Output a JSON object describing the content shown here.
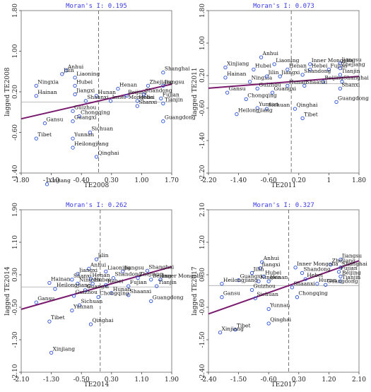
{
  "chart_data": [
    {
      "type": "scatter",
      "title": "Moran's I: 0.195",
      "xlabel": "TE2008",
      "ylabel": "lagged TE2008",
      "xticks": [
        "-1.80",
        "-1.10",
        "-0.40",
        "0.30",
        "1.00",
        "1.70"
      ],
      "yticks": [
        "1.80",
        "1.00",
        "0.20",
        "-0.60",
        "-1.40"
      ],
      "xlim": [
        -1.8,
        1.7
      ],
      "ylim": [
        -1.4,
        1.8
      ],
      "grid": false,
      "regression": {
        "intercept": 0.02,
        "slope": 0.195
      },
      "points": [
        {
          "name": "Anhui",
          "x": -0.75,
          "y": 0.62
        },
        {
          "name": "Jilin",
          "x": -0.85,
          "y": 0.55
        },
        {
          "name": "Liaoning",
          "x": -0.55,
          "y": 0.48
        },
        {
          "name": "Ningxia",
          "x": -1.45,
          "y": 0.32
        },
        {
          "name": "Hubei",
          "x": -0.55,
          "y": 0.32
        },
        {
          "name": "Hainan",
          "x": -1.45,
          "y": 0.12
        },
        {
          "name": "Jiangxi",
          "x": -0.55,
          "y": 0.15
        },
        {
          "name": "Hunan",
          "x": -0.05,
          "y": 0.12
        },
        {
          "name": "Shaanxi",
          "x": -0.3,
          "y": 0.02
        },
        {
          "name": "Inner Mongolia",
          "x": 0.28,
          "y": 0.02
        },
        {
          "name": "Henan",
          "x": 0.45,
          "y": 0.26
        },
        {
          "name": "Beijing",
          "x": 0.65,
          "y": 0.12
        },
        {
          "name": "Zhejiang",
          "x": 1.15,
          "y": 0.32
        },
        {
          "name": "Shanghai",
          "x": 1.5,
          "y": 0.58
        },
        {
          "name": "Jiangsu",
          "x": 1.5,
          "y": 0.32
        },
        {
          "name": "Shandong",
          "x": 1.05,
          "y": 0.15
        },
        {
          "name": "Fujian",
          "x": 1.45,
          "y": 0.07
        },
        {
          "name": "Hebei",
          "x": 0.9,
          "y": 0.02
        },
        {
          "name": "Tianjin",
          "x": 1.5,
          "y": -0.03
        },
        {
          "name": "Shanxi",
          "x": 0.9,
          "y": -0.08
        },
        {
          "name": "Guizhou",
          "x": -0.6,
          "y": -0.18
        },
        {
          "name": "Chongqing",
          "x": -0.45,
          "y": -0.28
        },
        {
          "name": "Gansu",
          "x": -1.25,
          "y": -0.42
        },
        {
          "name": "Guangxi",
          "x": -0.6,
          "y": -0.38
        },
        {
          "name": "Sichuan",
          "x": -0.2,
          "y": -0.6
        },
        {
          "name": "Guangdong",
          "x": 1.5,
          "y": -0.38
        },
        {
          "name": "Tibet",
          "x": -1.45,
          "y": -0.72
        },
        {
          "name": "Yunnan",
          "x": -0.6,
          "y": -0.72
        },
        {
          "name": "Heilongjiang",
          "x": -0.6,
          "y": -0.9
        },
        {
          "name": "Qinghai",
          "x": -0.05,
          "y": -1.08
        },
        {
          "name": "Xinjiang",
          "x": -1.2,
          "y": -1.62
        }
      ]
    },
    {
      "type": "scatter",
      "title": "Moran's I: 0.073",
      "xlabel": "TE2011",
      "ylabel": "lagged TE2011",
      "xticks": [
        "-2.20",
        "-1.40",
        "-0.60",
        "0.20",
        "1",
        "1.80"
      ],
      "yticks": [
        "1.80",
        "1.00",
        "0.20",
        "-0.60",
        "-1.40",
        "-2.20"
      ],
      "xlim": [
        -2.2,
        1.8
      ],
      "ylim": [
        -2.2,
        1.8
      ],
      "grid": false,
      "regression": {
        "intercept": 0.05,
        "slope": 0.073
      },
      "points": [
        {
          "name": "Anhui",
          "x": -0.8,
          "y": 0.65
        },
        {
          "name": "Liaoning",
          "x": -0.45,
          "y": 0.48
        },
        {
          "name": "Inner Mongolia",
          "x": 0.5,
          "y": 0.48
        },
        {
          "name": "Jiangsu",
          "x": 1.3,
          "y": 0.5
        },
        {
          "name": "Xinjiang",
          "x": -1.75,
          "y": 0.4
        },
        {
          "name": "Hubei",
          "x": -1.0,
          "y": 0.35
        },
        {
          "name": "Henan",
          "x": -0.1,
          "y": 0.35
        },
        {
          "name": "Hebei",
          "x": 0.5,
          "y": 0.35
        },
        {
          "name": "Fujian",
          "x": 1.0,
          "y": 0.35
        },
        {
          "name": "Zhejiang",
          "x": 1.3,
          "y": 0.38
        },
        {
          "name": "Hainan",
          "x": -1.75,
          "y": 0.15
        },
        {
          "name": "Ningxia",
          "x": -1.1,
          "y": 0.05
        },
        {
          "name": "Jilin",
          "x": -0.65,
          "y": 0.18
        },
        {
          "name": "Jiangxi",
          "x": -0.3,
          "y": 0.18
        },
        {
          "name": "Shandong",
          "x": 0.3,
          "y": 0.22
        },
        {
          "name": "Tianjin",
          "x": 1.3,
          "y": 0.22
        },
        {
          "name": "Beijing",
          "x": 0.85,
          "y": 0.05
        },
        {
          "name": "Shanghai",
          "x": 1.35,
          "y": 0.05
        },
        {
          "name": "Hunan",
          "x": -0.1,
          "y": -0.05
        },
        {
          "name": "Shaanxi",
          "x": 0.35,
          "y": -0.05
        },
        {
          "name": "Guizhou",
          "x": -0.9,
          "y": -0.12
        },
        {
          "name": "Guangxi",
          "x": -0.5,
          "y": -0.22
        },
        {
          "name": "Shanxi",
          "x": 1.3,
          "y": -0.12
        },
        {
          "name": "Gansu",
          "x": -1.7,
          "y": -0.22
        },
        {
          "name": "Chongqing",
          "x": -1.2,
          "y": -0.38
        },
        {
          "name": "Sichuan",
          "x": -0.65,
          "y": -0.62
        },
        {
          "name": "Guangdong",
          "x": 1.2,
          "y": -0.45
        },
        {
          "name": "Yunnan",
          "x": -0.9,
          "y": -0.6
        },
        {
          "name": "Qinghai",
          "x": 0.1,
          "y": -0.62
        },
        {
          "name": "Heilongjiang",
          "x": -1.45,
          "y": -0.75
        },
        {
          "name": "Tibet",
          "x": 0.3,
          "y": -0.85
        }
      ]
    },
    {
      "type": "scatter",
      "title": "Moran's I: 0.262",
      "xlabel": "TE2014",
      "ylabel": "lagged TE2014",
      "xticks": [
        "-2.10",
        "-1.30",
        "-0.50",
        "0.30",
        "1.10",
        "1.90"
      ],
      "yticks": [
        "1.90",
        "1.10",
        "0.30",
        "-0.50",
        "-1.30",
        "-2.10"
      ],
      "xlim": [
        -2.1,
        1.9
      ],
      "ylim": [
        -2.1,
        1.9
      ],
      "grid": false,
      "regression": {
        "intercept": 0.0,
        "slope": 0.262
      },
      "points": [
        {
          "name": "Jilin",
          "x": -0.1,
          "y": 0.68
        },
        {
          "name": "Anhui",
          "x": -0.3,
          "y": 0.45
        },
        {
          "name": "Liaoning",
          "x": 0.15,
          "y": 0.38
        },
        {
          "name": "Jiangsu",
          "x": 0.6,
          "y": 0.38
        },
        {
          "name": "Shanghai",
          "x": 1.25,
          "y": 0.4
        },
        {
          "name": "Jiangxi",
          "x": -0.6,
          "y": 0.32
        },
        {
          "name": "Shandong",
          "x": 0.35,
          "y": 0.22
        },
        {
          "name": "Zhejiang",
          "x": 1.0,
          "y": 0.22
        },
        {
          "name": "Shanxi",
          "x": -0.75,
          "y": 0.18
        },
        {
          "name": "Henan",
          "x": -0.25,
          "y": 0.2
        },
        {
          "name": "Beijing",
          "x": 1.35,
          "y": 0.18
        },
        {
          "name": "Inner Mongolia",
          "x": 1.6,
          "y": 0.18
        },
        {
          "name": "Hainan",
          "x": -1.35,
          "y": 0.1
        },
        {
          "name": "Ningxia",
          "x": -0.6,
          "y": 0.08
        },
        {
          "name": "Hubei",
          "x": -0.2,
          "y": 0.08
        },
        {
          "name": "Hebei",
          "x": 0.15,
          "y": 0.05
        },
        {
          "name": "Fujian",
          "x": 0.75,
          "y": 0.02
        },
        {
          "name": "Tianjin",
          "x": 1.5,
          "y": 0.02
        },
        {
          "name": "Heilongjiang",
          "x": -1.2,
          "y": -0.05
        },
        {
          "name": "Guangxi",
          "x": -0.4,
          "y": -0.08
        },
        {
          "name": "Hunan",
          "x": 0.3,
          "y": -0.15
        },
        {
          "name": "Shaanxi",
          "x": 0.75,
          "y": -0.2
        },
        {
          "name": "Guizhou",
          "x": -0.7,
          "y": -0.22
        },
        {
          "name": "Chongqing",
          "x": -0.05,
          "y": -0.25
        },
        {
          "name": "Gansu",
          "x": -1.7,
          "y": -0.38
        },
        {
          "name": "Sichuan",
          "x": -0.55,
          "y": -0.45
        },
        {
          "name": "Guangdong",
          "x": 1.35,
          "y": -0.35
        },
        {
          "name": "Yunnan",
          "x": -0.75,
          "y": -0.58
        },
        {
          "name": "Tibet",
          "x": -1.35,
          "y": -0.85
        },
        {
          "name": "Qinghai",
          "x": -0.25,
          "y": -0.92
        },
        {
          "name": "Xinjiang",
          "x": -1.3,
          "y": -1.62
        }
      ]
    },
    {
      "type": "scatter",
      "title": "Moran's I: 0.327",
      "xlabel": "TE2017",
      "ylabel": "lagged TE2017",
      "xticks": [
        "-2.40",
        "-1.50",
        "-0.60",
        "0.30",
        "1.20",
        "2.10"
      ],
      "yticks": [
        "2.10",
        "1.20",
        "0.30",
        "-0.60",
        "-1.50",
        "-2.40"
      ],
      "xlim": [
        -2.4,
        2.1
      ],
      "ylim": [
        -2.4,
        2.1
      ],
      "grid": false,
      "regression": {
        "intercept": 0.0,
        "slope": 0.327
      },
      "points": [
        {
          "name": "Jiangsu",
          "x": 1.55,
          "y": 0.72
        },
        {
          "name": "Anhui",
          "x": -0.8,
          "y": 0.65
        },
        {
          "name": "Zhejiang",
          "x": 1.25,
          "y": 0.58
        },
        {
          "name": "Shanghai",
          "x": 1.55,
          "y": 0.5
        },
        {
          "name": "Jiangxi",
          "x": -0.85,
          "y": 0.48
        },
        {
          "name": "Inner Mongolia",
          "x": 0.2,
          "y": 0.5
        },
        {
          "name": "Fujian",
          "x": 1.5,
          "y": 0.38
        },
        {
          "name": "Jilin",
          "x": -1.1,
          "y": 0.35
        },
        {
          "name": "Hubei",
          "x": -0.75,
          "y": 0.25
        },
        {
          "name": "Shandong",
          "x": 0.4,
          "y": 0.35
        },
        {
          "name": "Beijing",
          "x": 1.55,
          "y": 0.25
        },
        {
          "name": "Henan",
          "x": -0.6,
          "y": 0.12
        },
        {
          "name": "Hebei",
          "x": 0.5,
          "y": 0.18
        },
        {
          "name": "Tianjin",
          "x": 1.55,
          "y": 0.12
        },
        {
          "name": "Guangxi",
          "x": -1.5,
          "y": 0.15
        },
        {
          "name": "Ningxia",
          "x": -0.9,
          "y": 0.12
        },
        {
          "name": "Heilongjiang",
          "x": -2.0,
          "y": 0.05
        },
        {
          "name": "Hunan",
          "x": 0.85,
          "y": 0.05
        },
        {
          "name": "Guangdong",
          "x": 1.1,
          "y": 0.02
        },
        {
          "name": "Shaanxi",
          "x": 0.1,
          "y": -0.05
        },
        {
          "name": "Guizhou",
          "x": -1.1,
          "y": -0.12
        },
        {
          "name": "Sichuan",
          "x": -1.0,
          "y": -0.35
        },
        {
          "name": "Gansu",
          "x": -2.0,
          "y": -0.32
        },
        {
          "name": "Chongqing",
          "x": 0.25,
          "y": -0.32
        },
        {
          "name": "Yunnan",
          "x": -0.6,
          "y": -0.65
        },
        {
          "name": "Tibet",
          "x": -1.6,
          "y": -1.22
        },
        {
          "name": "Qinghai",
          "x": -0.6,
          "y": -1.05
        },
        {
          "name": "Xinjiang",
          "x": -2.05,
          "y": -1.3
        }
      ]
    }
  ]
}
